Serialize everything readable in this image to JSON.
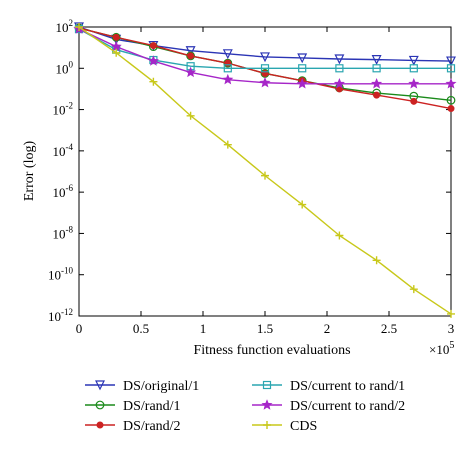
{
  "chart_data": {
    "type": "line",
    "title": "",
    "xlabel": "Fitness function evaluations",
    "ylabel": "Error (log)",
    "x_multiplier_label": "×10",
    "x_multiplier_exp": "5",
    "x_scale": 100000,
    "xlim": [
      0,
      3
    ],
    "ylim_log10": [
      -12,
      2
    ],
    "y_scale": "log",
    "x_ticks": [
      0,
      0.5,
      1,
      1.5,
      2,
      2.5,
      3
    ],
    "x_tick_labels": [
      "0",
      "0.5",
      "1",
      "1.5",
      "2",
      "2.5",
      "3"
    ],
    "y_ticks_log10": [
      2,
      0,
      -2,
      -4,
      -6,
      -8,
      -10,
      -12
    ],
    "y_tick_base": "10",
    "y_tick_exps": [
      "2",
      "0",
      "-2",
      "-4",
      "-6",
      "-8",
      "-10",
      "-12"
    ],
    "grid": false,
    "legend_position": "bottom",
    "series": [
      {
        "name": "DS/original/1",
        "color": "#2b35b5",
        "marker": "triangle-down",
        "x": [
          0,
          0.3,
          0.6,
          0.9,
          1.2,
          1.5,
          1.8,
          2.1,
          2.4,
          2.7,
          3.0
        ],
        "log10_y": [
          2.0,
          1.4,
          1.1,
          0.85,
          0.7,
          0.55,
          0.5,
          0.45,
          0.42,
          0.38,
          0.35
        ]
      },
      {
        "name": "DS/rand/1",
        "color": "#1a8a1a",
        "marker": "circle",
        "x": [
          0,
          0.3,
          0.6,
          0.9,
          1.2,
          1.5,
          1.8,
          2.1,
          2.4,
          2.7,
          3.0
        ],
        "log10_y": [
          1.95,
          1.5,
          1.05,
          0.6,
          0.25,
          -0.25,
          -0.6,
          -0.95,
          -1.2,
          -1.35,
          -1.55
        ]
      },
      {
        "name": "DS/rand/2",
        "color": "#cc2222",
        "marker": "dot",
        "x": [
          0,
          0.3,
          0.6,
          0.9,
          1.2,
          1.5,
          1.8,
          2.1,
          2.4,
          2.7,
          3.0
        ],
        "log10_y": [
          1.95,
          1.5,
          1.1,
          0.6,
          0.25,
          -0.25,
          -0.6,
          -1.0,
          -1.3,
          -1.6,
          -1.95
        ]
      },
      {
        "name": "DS/current to rand/1",
        "color": "#2aa6b0",
        "marker": "square",
        "x": [
          0,
          0.3,
          0.6,
          0.9,
          1.2,
          1.5,
          1.8,
          2.1,
          2.4,
          2.7,
          3.0
        ],
        "log10_y": [
          1.9,
          0.9,
          0.4,
          0.1,
          0.0,
          0.0,
          0.0,
          0.0,
          0.0,
          0.0,
          0.0
        ]
      },
      {
        "name": "DS/current to rand/2",
        "color": "#a626c8",
        "marker": "star",
        "x": [
          0,
          0.3,
          0.6,
          0.9,
          1.2,
          1.5,
          1.8,
          2.1,
          2.4,
          2.7,
          3.0
        ],
        "log10_y": [
          1.9,
          1.05,
          0.35,
          -0.2,
          -0.55,
          -0.7,
          -0.75,
          -0.75,
          -0.75,
          -0.75,
          -0.75
        ]
      },
      {
        "name": "CDS",
        "color": "#c8c81a",
        "marker": "plus",
        "x": [
          0,
          0.3,
          0.6,
          0.9,
          1.2,
          1.5,
          1.8,
          2.1,
          2.4,
          2.7,
          3.0
        ],
        "log10_y": [
          2.0,
          0.75,
          -0.65,
          -2.3,
          -3.7,
          -5.2,
          -6.6,
          -8.1,
          -9.3,
          -10.7,
          -11.9
        ]
      }
    ]
  }
}
